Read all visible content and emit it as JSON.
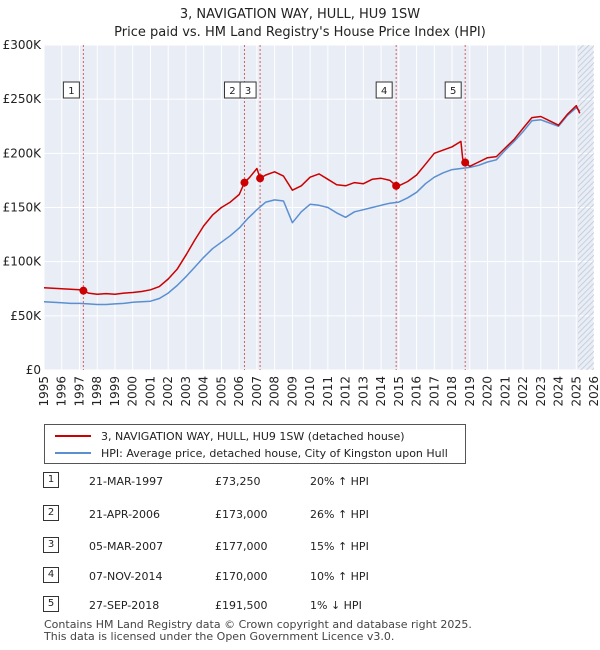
{
  "chart_data": {
    "type": "line",
    "title": "3, NAVIGATION WAY, HULL, HU9 1SW",
    "subtitle": "Price paid vs. HM Land Registry's House Price Index (HPI)",
    "xlim": [
      1995,
      2026
    ],
    "ylim": [
      0,
      300000
    ],
    "x_ticks": [
      "1995",
      "1996",
      "1997",
      "1998",
      "1999",
      "2000",
      "2001",
      "2002",
      "2003",
      "2004",
      "2005",
      "2006",
      "2007",
      "2008",
      "2009",
      "2010",
      "2011",
      "2012",
      "2013",
      "2014",
      "2015",
      "2016",
      "2017",
      "2018",
      "2019",
      "2020",
      "2021",
      "2022",
      "2023",
      "2024",
      "2025",
      "2026"
    ],
    "y_ticks": [
      {
        "value": 0,
        "label": "£0"
      },
      {
        "value": 50000,
        "label": "£50K"
      },
      {
        "value": 100000,
        "label": "£100K"
      },
      {
        "value": 150000,
        "label": "£150K"
      },
      {
        "value": 200000,
        "label": "£200K"
      },
      {
        "value": 250000,
        "label": "£250K"
      },
      {
        "value": 300000,
        "label": "£300K"
      }
    ],
    "grid": true,
    "forecast_start": 2025.1,
    "series": [
      {
        "name": "3, NAVIGATION WAY, HULL, HU9 1SW (detached house)",
        "color": "#cc0000",
        "points": [
          [
            1995.0,
            76000
          ],
          [
            1995.5,
            75500
          ],
          [
            1996.0,
            75000
          ],
          [
            1996.5,
            74500
          ],
          [
            1997.0,
            74000
          ],
          [
            1997.22,
            73250
          ],
          [
            1997.5,
            71000
          ],
          [
            1998.0,
            70000
          ],
          [
            1998.5,
            70500
          ],
          [
            1999.0,
            70000
          ],
          [
            1999.5,
            71000
          ],
          [
            2000.0,
            71500
          ],
          [
            2000.5,
            72500
          ],
          [
            2001.0,
            74000
          ],
          [
            2001.5,
            77000
          ],
          [
            2002.0,
            84000
          ],
          [
            2002.5,
            93000
          ],
          [
            2003.0,
            106000
          ],
          [
            2003.5,
            120000
          ],
          [
            2004.0,
            133000
          ],
          [
            2004.5,
            143000
          ],
          [
            2005.0,
            150000
          ],
          [
            2005.5,
            155000
          ],
          [
            2006.0,
            162000
          ],
          [
            2006.3,
            173000
          ],
          [
            2006.6,
            178000
          ],
          [
            2007.0,
            186000
          ],
          [
            2007.18,
            177000
          ],
          [
            2007.5,
            180000
          ],
          [
            2008.0,
            183000
          ],
          [
            2008.5,
            179000
          ],
          [
            2009.0,
            166000
          ],
          [
            2009.5,
            170000
          ],
          [
            2010.0,
            178000
          ],
          [
            2010.5,
            181000
          ],
          [
            2011.0,
            176000
          ],
          [
            2011.5,
            171000
          ],
          [
            2012.0,
            170000
          ],
          [
            2012.5,
            173000
          ],
          [
            2013.0,
            172000
          ],
          [
            2013.5,
            176000
          ],
          [
            2014.0,
            177000
          ],
          [
            2014.5,
            175000
          ],
          [
            2014.85,
            170000
          ],
          [
            2015.0,
            170000
          ],
          [
            2015.5,
            174000
          ],
          [
            2016.0,
            180000
          ],
          [
            2016.5,
            190000
          ],
          [
            2017.0,
            200000
          ],
          [
            2017.5,
            203000
          ],
          [
            2018.0,
            206000
          ],
          [
            2018.5,
            211000
          ],
          [
            2018.6,
            195000
          ],
          [
            2018.74,
            191500
          ],
          [
            2019.0,
            188000
          ],
          [
            2019.5,
            192000
          ],
          [
            2020.0,
            196000
          ],
          [
            2020.5,
            197000
          ],
          [
            2021.0,
            205000
          ],
          [
            2021.5,
            213000
          ],
          [
            2022.0,
            223000
          ],
          [
            2022.5,
            233000
          ],
          [
            2023.0,
            234000
          ],
          [
            2023.5,
            230000
          ],
          [
            2024.0,
            226000
          ],
          [
            2024.5,
            236000
          ],
          [
            2025.0,
            244000
          ],
          [
            2025.2,
            237000
          ]
        ]
      },
      {
        "name": "HPI: Average price, detached house, City of Kingston upon Hull",
        "color": "#5b8fd0",
        "points": [
          [
            1995.0,
            63000
          ],
          [
            1995.5,
            62500
          ],
          [
            1996.0,
            62000
          ],
          [
            1996.5,
            61500
          ],
          [
            1997.0,
            61500
          ],
          [
            1997.5,
            61000
          ],
          [
            1998.0,
            60500
          ],
          [
            1998.5,
            60500
          ],
          [
            1999.0,
            61000
          ],
          [
            1999.5,
            61500
          ],
          [
            2000.0,
            62500
          ],
          [
            2000.5,
            63000
          ],
          [
            2001.0,
            63500
          ],
          [
            2001.5,
            66000
          ],
          [
            2002.0,
            71000
          ],
          [
            2002.5,
            78000
          ],
          [
            2003.0,
            86000
          ],
          [
            2003.5,
            95000
          ],
          [
            2004.0,
            104000
          ],
          [
            2004.5,
            112000
          ],
          [
            2005.0,
            118000
          ],
          [
            2005.5,
            124000
          ],
          [
            2006.0,
            131000
          ],
          [
            2006.5,
            140000
          ],
          [
            2007.0,
            148000
          ],
          [
            2007.5,
            155000
          ],
          [
            2008.0,
            157000
          ],
          [
            2008.5,
            156000
          ],
          [
            2009.0,
            136000
          ],
          [
            2009.5,
            146000
          ],
          [
            2010.0,
            153000
          ],
          [
            2010.5,
            152000
          ],
          [
            2011.0,
            150000
          ],
          [
            2011.5,
            145000
          ],
          [
            2012.0,
            141000
          ],
          [
            2012.5,
            146000
          ],
          [
            2013.0,
            148000
          ],
          [
            2013.5,
            150000
          ],
          [
            2014.0,
            152000
          ],
          [
            2014.5,
            154000
          ],
          [
            2015.0,
            155000
          ],
          [
            2015.5,
            159000
          ],
          [
            2016.0,
            164000
          ],
          [
            2016.5,
            172000
          ],
          [
            2017.0,
            178000
          ],
          [
            2017.5,
            182000
          ],
          [
            2018.0,
            185000
          ],
          [
            2018.5,
            186000
          ],
          [
            2019.0,
            187000
          ],
          [
            2019.5,
            189000
          ],
          [
            2020.0,
            192000
          ],
          [
            2020.5,
            194000
          ],
          [
            2021.0,
            203000
          ],
          [
            2021.5,
            211000
          ],
          [
            2022.0,
            220000
          ],
          [
            2022.5,
            230000
          ],
          [
            2023.0,
            231000
          ],
          [
            2023.5,
            228000
          ],
          [
            2024.0,
            225000
          ],
          [
            2024.5,
            235000
          ],
          [
            2025.0,
            242000
          ],
          [
            2025.2,
            239000
          ]
        ]
      }
    ],
    "events": [
      {
        "num": "1",
        "x": 1997.22,
        "price": 73250
      },
      {
        "num": "2",
        "x": 2006.3,
        "price": 173000
      },
      {
        "num": "3",
        "x": 2007.18,
        "price": 177000
      },
      {
        "num": "4",
        "x": 2014.85,
        "price": 170000
      },
      {
        "num": "5",
        "x": 2018.74,
        "price": 191500
      }
    ]
  },
  "legend": {
    "property_label": "3, NAVIGATION WAY, HULL, HU9 1SW (detached house)",
    "hpi_label": "HPI: Average price, detached house, City of Kingston upon Hull"
  },
  "transactions": [
    {
      "num": "1",
      "date": "21-MAR-1997",
      "price": "£73,250",
      "hpi": "20% ↑ HPI"
    },
    {
      "num": "2",
      "date": "21-APR-2006",
      "price": "£173,000",
      "hpi": "26% ↑ HPI"
    },
    {
      "num": "3",
      "date": "05-MAR-2007",
      "price": "£177,000",
      "hpi": "15% ↑ HPI"
    },
    {
      "num": "4",
      "date": "07-NOV-2014",
      "price": "£170,000",
      "hpi": "10% ↑ HPI"
    },
    {
      "num": "5",
      "date": "27-SEP-2018",
      "price": "£191,500",
      "hpi": "1% ↓ HPI"
    }
  ],
  "footer": {
    "line1": "Contains HM Land Registry data © Crown copyright and database right 2025.",
    "line2": "This data is licensed under the Open Government Licence v3.0."
  },
  "colors": {
    "property_line": "#cc0000",
    "hpi_line": "#5b8fd0",
    "plot_background": "#e8edf6",
    "grid": "#ffffff",
    "event_line": "#cc0000"
  }
}
